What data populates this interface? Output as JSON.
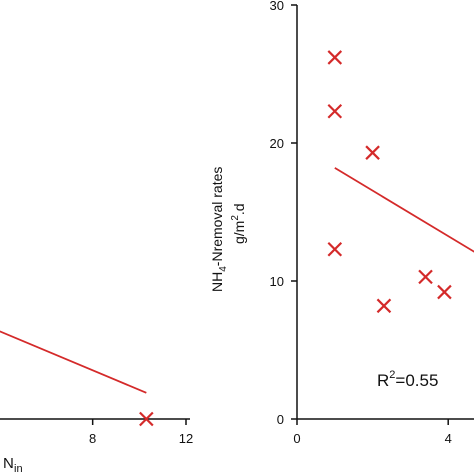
{
  "chart_data": [
    {
      "type": "scatter",
      "color": "#d42a2a",
      "xlim": [
        0,
        12
      ],
      "ylim": [
        0,
        30
      ],
      "xticks": [
        8,
        12
      ],
      "xlabel_fragment": "N",
      "xlabel_sub": "in",
      "points": [
        {
          "x": 10.3,
          "y": 0
        }
      ],
      "fit_line": [
        {
          "x": 0,
          "y": 9.2
        },
        {
          "x": 10.3,
          "y": 1.9
        }
      ]
    },
    {
      "type": "scatter",
      "color": "#d42a2a",
      "xlim": [
        0,
        5
      ],
      "ylim": [
        0,
        30
      ],
      "xticks": [
        0,
        4
      ],
      "yticks": [
        0,
        10,
        20,
        30
      ],
      "ylabel_line1": "NH",
      "ylabel_sub": "4",
      "ylabel_line1_rest": "-Nremoval rates",
      "ylabel_line2": "g/m",
      "ylabel_sup": "2",
      "ylabel_line2_rest": ".d",
      "annotation_base": "R",
      "annotation_sup": "2",
      "annotation_rest": "=0.55",
      "points": [
        {
          "x": 1.0,
          "y": 26.2
        },
        {
          "x": 1.0,
          "y": 22.3
        },
        {
          "x": 1.0,
          "y": 12.3
        },
        {
          "x": 2.0,
          "y": 19.3
        },
        {
          "x": 2.3,
          "y": 8.2
        },
        {
          "x": 3.4,
          "y": 10.3
        },
        {
          "x": 3.9,
          "y": 9.2
        }
      ],
      "fit_line": [
        {
          "x": 1.0,
          "y": 18.2
        },
        {
          "x": 4.7,
          "y": 12.1
        }
      ]
    }
  ]
}
